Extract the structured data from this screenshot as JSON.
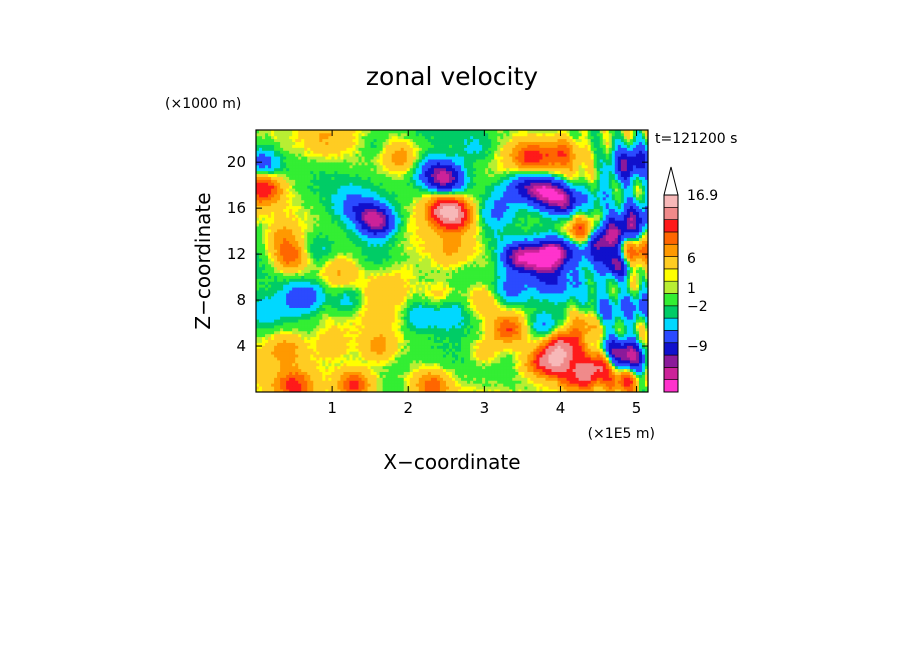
{
  "chart_data": {
    "type": "heatmap",
    "title": "zonal velocity",
    "xlabel": "X−coordinate",
    "ylabel": "Z−coordinate",
    "x_unit": "(×1E5 m)",
    "y_unit": "(×1000 m)",
    "time_label": "t=121200 s",
    "xlim": [
      0,
      5.15
    ],
    "ylim": [
      0,
      22.8
    ],
    "x_ticks": [
      1,
      2,
      3,
      4,
      5
    ],
    "x_tick_labels": [
      "1",
      "2",
      "3",
      "4",
      "5"
    ],
    "y_ticks": [
      4,
      8,
      12,
      16,
      20
    ],
    "y_tick_labels": [
      "4",
      "8",
      "12",
      "16",
      "20"
    ],
    "colorbar": {
      "bins": [
        {
          "color": "#ff33cc"
        },
        {
          "color": "#cc2299"
        },
        {
          "color": "#8b1a9a"
        },
        {
          "color": "#1010cc"
        },
        {
          "color": "#2b4aff"
        },
        {
          "color": "#00d8ff"
        },
        {
          "color": "#00cc66"
        },
        {
          "color": "#33ee33"
        },
        {
          "color": "#b8ee33"
        },
        {
          "color": "#ffff00"
        },
        {
          "color": "#ffcc22"
        },
        {
          "color": "#ff9900"
        },
        {
          "color": "#ff6600"
        },
        {
          "color": "#ff1a1a"
        },
        {
          "color": "#f08a8a"
        },
        {
          "color": "#f7b8b8"
        }
      ],
      "labels": [
        "16.9",
        "6",
        "1",
        "−2",
        "−9"
      ],
      "label_values": [
        16.9,
        6,
        1,
        -2,
        -9
      ],
      "range": [
        -16,
        16.9
      ]
    },
    "features": [
      {
        "x": 0.05,
        "z": 20.2,
        "v": -4
      },
      {
        "x": 0.15,
        "z": 19.5,
        "v": -3
      },
      {
        "x": 0.1,
        "z": 17.8,
        "v": 9
      },
      {
        "x": 0.45,
        "z": 11.8,
        "v": 7
      },
      {
        "x": 0.35,
        "z": 13.5,
        "v": 4
      },
      {
        "x": 0.55,
        "z": 8.2,
        "v": -5
      },
      {
        "x": 0.75,
        "z": 8.4,
        "v": -3
      },
      {
        "x": 0.15,
        "z": 7.0,
        "v": -3
      },
      {
        "x": 1.25,
        "z": 16.3,
        "v": -3
      },
      {
        "x": 1.6,
        "z": 14.8,
        "v": -11
      },
      {
        "x": 1.45,
        "z": 15.6,
        "v": -5
      },
      {
        "x": 1.1,
        "z": 10.5,
        "v": 3
      },
      {
        "x": 1.2,
        "z": 8.0,
        "v": -4
      },
      {
        "x": 1.7,
        "z": 9.0,
        "v": 2
      },
      {
        "x": 1.95,
        "z": 10.2,
        "v": 1
      },
      {
        "x": 1.6,
        "z": 12.0,
        "v": -1
      },
      {
        "x": 1.6,
        "z": 4.0,
        "v": 4
      },
      {
        "x": 1.0,
        "z": 4.2,
        "v": 3
      },
      {
        "x": 0.4,
        "z": 3.8,
        "v": 4
      },
      {
        "x": 1.9,
        "z": 20.5,
        "v": 4
      },
      {
        "x": 2.3,
        "z": 19.2,
        "v": -5
      },
      {
        "x": 2.5,
        "z": 18.6,
        "v": -11
      },
      {
        "x": 2.6,
        "z": 15.5,
        "v": 11
      },
      {
        "x": 2.45,
        "z": 16.0,
        "v": 8
      },
      {
        "x": 2.55,
        "z": 12.3,
        "v": 2
      },
      {
        "x": 3.1,
        "z": 13.3,
        "v": -2
      },
      {
        "x": 3.15,
        "z": 15.5,
        "v": -4
      },
      {
        "x": 2.8,
        "z": 10.7,
        "v": -1
      },
      {
        "x": 2.4,
        "z": 8.4,
        "v": 2
      },
      {
        "x": 2.15,
        "z": 6.6,
        "v": -4
      },
      {
        "x": 2.55,
        "z": 6.8,
        "v": -3
      },
      {
        "x": 3.3,
        "z": 5.5,
        "v": 7
      },
      {
        "x": 3.0,
        "z": 3.5,
        "v": 3
      },
      {
        "x": 3.65,
        "z": 2.5,
        "v": 3
      },
      {
        "x": 1.3,
        "z": 0.6,
        "v": 8
      },
      {
        "x": 2.3,
        "z": 0.6,
        "v": 6
      },
      {
        "x": 0.5,
        "z": 0.5,
        "v": 7
      },
      {
        "x": 3.8,
        "z": 17.5,
        "v": -13
      },
      {
        "x": 4.05,
        "z": 16.7,
        "v": -11
      },
      {
        "x": 3.55,
        "z": 18.0,
        "v": -7
      },
      {
        "x": 3.6,
        "z": 20.5,
        "v": 7
      },
      {
        "x": 4.0,
        "z": 20.8,
        "v": 6
      },
      {
        "x": 3.45,
        "z": 11.8,
        "v": -12
      },
      {
        "x": 3.75,
        "z": 11.5,
        "v": -11
      },
      {
        "x": 3.95,
        "z": 12.2,
        "v": -12
      },
      {
        "x": 3.35,
        "z": 9.0,
        "v": -5
      },
      {
        "x": 3.85,
        "z": 9.5,
        "v": -5
      },
      {
        "x": 4.05,
        "z": 4.0,
        "v": 9
      },
      {
        "x": 3.9,
        "z": 2.7,
        "v": 12
      },
      {
        "x": 4.25,
        "z": 1.4,
        "v": 9
      },
      {
        "x": 3.8,
        "z": 5.8,
        "v": -5
      },
      {
        "x": 4.3,
        "z": 14.0,
        "v": 9
      },
      {
        "x": 4.6,
        "z": 13.5,
        "v": -11
      },
      {
        "x": 4.75,
        "z": 11.2,
        "v": -12
      },
      {
        "x": 4.4,
        "z": 12.5,
        "v": -6
      },
      {
        "x": 4.85,
        "z": 14.2,
        "v": -6
      },
      {
        "x": 5.0,
        "z": 15.3,
        "v": -6
      },
      {
        "x": 4.95,
        "z": 12.2,
        "v": 9
      },
      {
        "x": 4.85,
        "z": 19.6,
        "v": -7
      },
      {
        "x": 5.0,
        "z": 20.4,
        "v": -5
      },
      {
        "x": 4.9,
        "z": 3.0,
        "v": -12
      },
      {
        "x": 4.7,
        "z": 3.8,
        "v": -7
      },
      {
        "x": 4.5,
        "z": 2.3,
        "v": 9
      },
      {
        "x": 4.85,
        "z": 1.0,
        "v": 8
      },
      {
        "x": 4.6,
        "z": 7.0,
        "v": -5
      },
      {
        "x": 5.05,
        "z": 7.5,
        "v": -6
      },
      {
        "x": 4.2,
        "z": 9.5,
        "v": -2
      },
      {
        "x": 4.5,
        "z": 17.0,
        "v": -3
      },
      {
        "x": 0.8,
        "z": 12.5,
        "v": -2
      },
      {
        "x": 0.9,
        "z": 22.0,
        "v": 2
      },
      {
        "x": 1.55,
        "z": 21.5,
        "v": -2
      },
      {
        "x": 2.9,
        "z": 21.2,
        "v": -2
      },
      {
        "x": 3.3,
        "z": 17.3,
        "v": -3
      },
      {
        "x": 4.35,
        "z": 6.0,
        "v": 4
      },
      {
        "x": 0.15,
        "z": 14.5,
        "v": -1
      },
      {
        "x": 3.0,
        "z": 8.0,
        "v": 3
      }
    ]
  }
}
